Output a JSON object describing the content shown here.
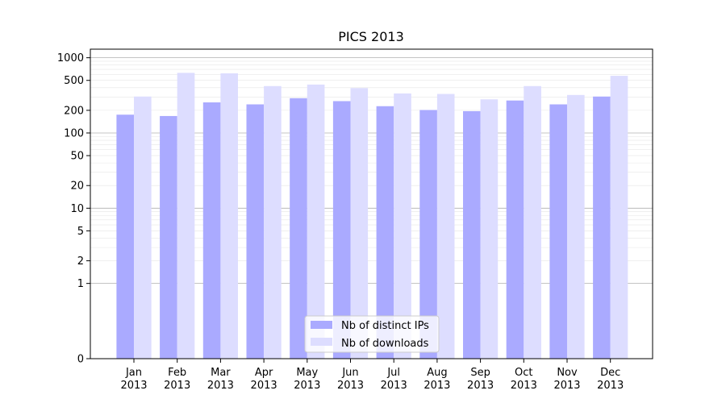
{
  "chart_data": {
    "type": "bar",
    "title": "PICS 2013",
    "xlabel": "",
    "ylabel": "",
    "yscale": "symlog",
    "ylim": [
      0,
      1300
    ],
    "yticks": [
      0,
      1,
      2,
      5,
      10,
      20,
      50,
      100,
      200,
      500,
      1000
    ],
    "grid": "horizontal",
    "legend_position": "bottom-center",
    "categories": [
      [
        "Jan",
        "2013"
      ],
      [
        "Feb",
        "2013"
      ],
      [
        "Mar",
        "2013"
      ],
      [
        "Apr",
        "2013"
      ],
      [
        "May",
        "2013"
      ],
      [
        "Jun",
        "2013"
      ],
      [
        "Jul",
        "2013"
      ],
      [
        "Aug",
        "2013"
      ],
      [
        "Sep",
        "2013"
      ],
      [
        "Oct",
        "2013"
      ],
      [
        "Nov",
        "2013"
      ],
      [
        "Dec",
        "2013"
      ]
    ],
    "series": [
      {
        "name": "Nb of distinct IPs",
        "color": "#aaaaff",
        "values": [
          175,
          168,
          255,
          240,
          290,
          265,
          227,
          202,
          195,
          270,
          240,
          305
        ]
      },
      {
        "name": "Nb of downloads",
        "color": "#ddddff",
        "values": [
          305,
          630,
          620,
          420,
          440,
          395,
          335,
          330,
          280,
          420,
          320,
          575
        ]
      }
    ]
  }
}
